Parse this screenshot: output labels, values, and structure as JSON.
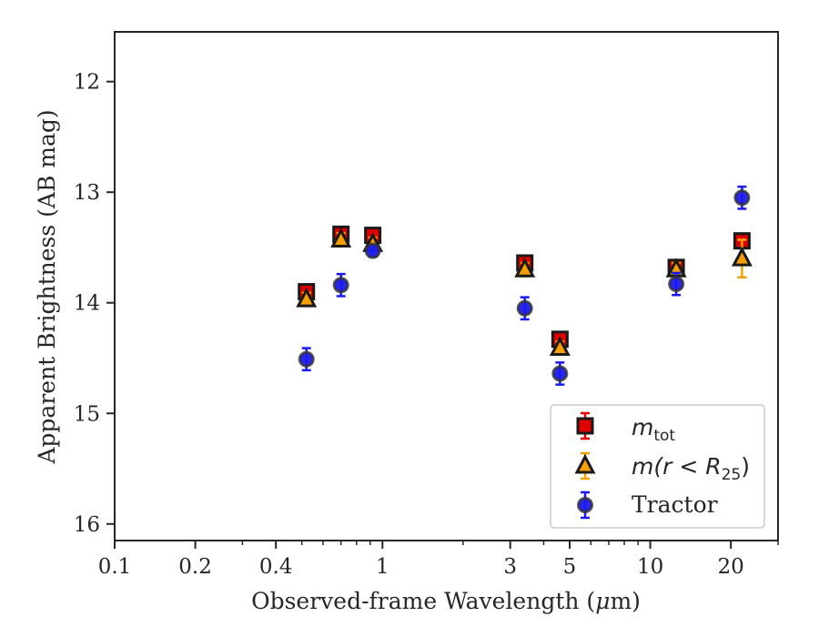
{
  "chart_data": {
    "type": "scatter",
    "title": "",
    "xlabel_main": "Observed-frame Wavelength (",
    "xlabel_mu": "μ",
    "xlabel_tail": "m)",
    "ylabel": "Apparent Brightness (AB mag)",
    "xscale": "log",
    "xlim": [
      0.1,
      30
    ],
    "ylim": [
      16.15,
      11.55
    ],
    "y_inverted": true,
    "x_ticks": [
      0.1,
      0.2,
      0.4,
      1,
      3,
      5,
      10,
      20
    ],
    "x_tick_labels": [
      "0.1",
      "0.2",
      "0.4",
      "1",
      "3",
      "5",
      "10",
      "20"
    ],
    "y_ticks": [
      12,
      13,
      14,
      15,
      16
    ],
    "y_tick_labels": [
      "12",
      "13",
      "14",
      "15",
      "16"
    ],
    "legend_position": "lower right",
    "series": [
      {
        "name": "m_tot",
        "legend_math": {
          "base": "m",
          "sub": "tot"
        },
        "marker": "square",
        "face_color": "#e00000",
        "edge_color": "#1a1a1a",
        "err_color": "#e00000",
        "x": [
          0.52,
          0.7,
          0.92,
          3.4,
          4.6,
          12.5,
          22.0
        ],
        "y": [
          13.9,
          13.38,
          13.39,
          13.64,
          14.33,
          13.68,
          13.44
        ],
        "yerr": [
          0.06,
          0.06,
          0.06,
          0.06,
          0.06,
          0.06,
          0.06
        ]
      },
      {
        "name": "m(r<R25)",
        "legend_math": {
          "base": "m(r < R",
          "sub": "25",
          "tail": ")"
        },
        "marker": "triangle",
        "face_color": "#f5a000",
        "edge_color": "#1a1a1a",
        "err_color": "#f5a000",
        "x": [
          0.52,
          0.7,
          0.92,
          3.4,
          4.6,
          12.5,
          22.0
        ],
        "y": [
          13.97,
          13.43,
          13.47,
          13.7,
          14.41,
          13.7,
          13.6
        ],
        "yerr": [
          0.06,
          0.06,
          0.06,
          0.06,
          0.06,
          0.06,
          0.17
        ]
      },
      {
        "name": "Tractor",
        "marker": "circle",
        "face_color": "#1a1aee",
        "edge_color": "#333333",
        "err_color": "#1a1aee",
        "x": [
          0.52,
          0.7,
          0.92,
          3.4,
          4.6,
          12.5,
          22.0
        ],
        "y": [
          14.51,
          13.84,
          13.53,
          14.05,
          14.64,
          13.83,
          13.05
        ],
        "yerr": [
          0.1,
          0.1,
          0.05,
          0.1,
          0.1,
          0.1,
          0.1
        ]
      }
    ]
  }
}
